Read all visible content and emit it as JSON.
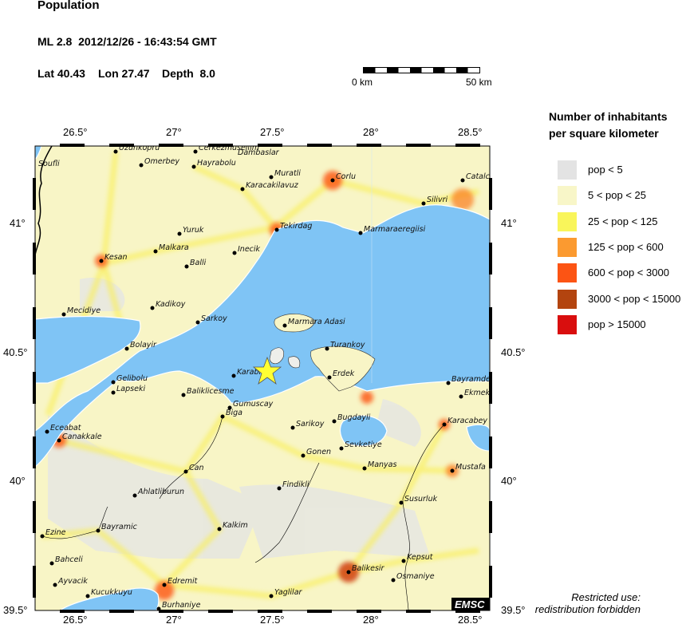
{
  "header": {
    "title": "Population",
    "event": "ML 2.8  2012/12/26 - 16:43:54 GMT",
    "lat_label": "Lat 40.43",
    "lon_label": "Lon 27.47",
    "depth_label": "Depth  8.0"
  },
  "scale_bar": {
    "start": "0 km",
    "end": "50 km"
  },
  "axes": {
    "lon_ticks": [
      "26.5°",
      "27°",
      "27.5°",
      "28°",
      "28.5°"
    ],
    "lat_ticks": [
      "41°",
      "40.5°",
      "40°",
      "39.5°"
    ]
  },
  "epicenter": {
    "lat": 40.43,
    "lon": 27.47,
    "marker": "yellow-star",
    "color": "#ffff33"
  },
  "colors": {
    "sea": "#7fc4f5",
    "land_base": "#f8f5c6"
  },
  "cities": [
    "Uzunkopru",
    "Cerkezmusellim",
    "Dambaslar",
    "Omerbey",
    "Hayrabolu",
    "Soufli",
    "Muratli",
    "Corlu",
    "Karacakilavuz",
    "Catalca",
    "Silivri",
    "Tekirdag",
    "Marmaraeregiisi",
    "Yuruk",
    "Inecik",
    "Malkara",
    "Kesan",
    "Balli",
    "Mecidiye",
    "Kadikoy",
    "Sarkoy",
    "Marmara Adasi",
    "Bolayir",
    "Turankoy",
    "Karabiga",
    "Erdek",
    "Gelibolu",
    "Lapseki",
    "Baliklicesme",
    "Bayramdere",
    "Ekmek",
    "Gumuscay",
    "Biga",
    "Sarikoy",
    "Bugdayli",
    "Karacabey",
    "Eceabat",
    "Canakkale",
    "Sevketiye",
    "Gonen",
    "Manyas",
    "Mustafa",
    "Findikli",
    "Can",
    "Ahlatliburun",
    "Susurluk",
    "Bayramic",
    "Kalkim",
    "Ezine",
    "Bahceli",
    "Kepsut",
    "Balikesir",
    "Osmaniye",
    "Ayvacik",
    "Edremit",
    "Kucukkuyu",
    "Yaglilar",
    "Burhaniye"
  ],
  "legend": {
    "title_line1": "Number of inhabitants",
    "title_line2": "per square kilometer",
    "items": [
      {
        "label": "pop < 5",
        "color": "#e3e3e3"
      },
      {
        "label": "5 < pop < 25",
        "color": "#f8f6c8"
      },
      {
        "label": "25 < pop < 125",
        "color": "#f9f55a"
      },
      {
        "label": "125 < pop < 600",
        "color": "#fb9a30"
      },
      {
        "label": "600 < pop < 3000",
        "color": "#fc5414"
      },
      {
        "label": "3000 < pop < 15000",
        "color": "#b3440f"
      },
      {
        "label": "pop > 15000",
        "color": "#d90e0e"
      }
    ]
  },
  "watermark": "EMSC",
  "note": {
    "line1": "Restricted use:",
    "line2": "redistribution forbidden"
  }
}
